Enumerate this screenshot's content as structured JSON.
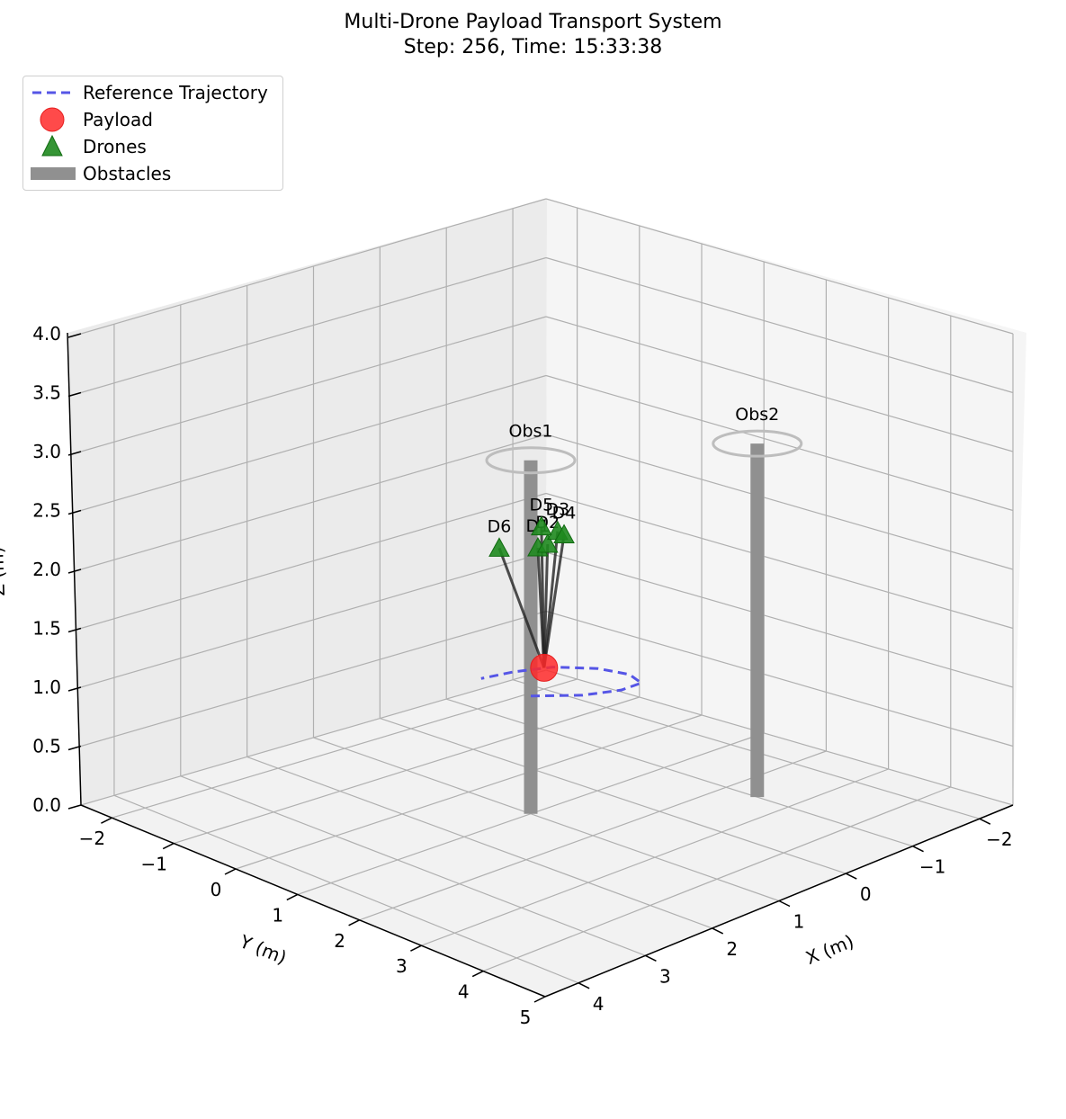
{
  "chart_data": {
    "type": "3d-scatter",
    "title_line1": "Multi-Drone Payload Transport System",
    "title_line2": "Step: 256, Time: 15:33:38",
    "xlabel": "X (m)",
    "ylabel": "Y (m)",
    "zlabel": "Z (m)",
    "xlim": [
      -2.5,
      4.5
    ],
    "ylim": [
      -2.5,
      5
    ],
    "zlim": [
      0,
      4
    ],
    "x_ticks": [
      "−2",
      "−1",
      "0",
      "1",
      "2",
      "3",
      "4"
    ],
    "y_ticks": [
      "−2",
      "−1",
      "0",
      "1",
      "2",
      "3",
      "4",
      "5"
    ],
    "z_ticks": [
      "0.0",
      "0.5",
      "1.0",
      "1.5",
      "2.0",
      "2.5",
      "3.0",
      "3.5",
      "4.0"
    ],
    "grid": true,
    "legend_position": "top-left",
    "legend": [
      "Reference Trajectory",
      "Payload",
      "Drones",
      "Obstacles"
    ],
    "colors": {
      "trajectory": "#5555e6",
      "payload": "#ff2a2a",
      "drones": "#1f8a1f",
      "obstacles": "#909090",
      "cables": "#222222"
    },
    "payload": {
      "x": 0.8,
      "y": 1.0,
      "z": 1.2
    },
    "drones": [
      {
        "name": "D1",
        "x": 0.8,
        "y": 0.9,
        "z": 2.2
      },
      {
        "name": "D2",
        "x": 0.7,
        "y": 0.95,
        "z": 2.22
      },
      {
        "name": "D3",
        "x": 0.55,
        "y": 0.95,
        "z": 2.3
      },
      {
        "name": "D4",
        "x": 0.5,
        "y": 1.0,
        "z": 2.27
      },
      {
        "name": "D5",
        "x": 0.7,
        "y": 0.85,
        "z": 2.35
      },
      {
        "name": "D6",
        "x": 1.1,
        "y": 0.6,
        "z": 2.2
      }
    ],
    "obstacles": [
      {
        "name": "Obs1",
        "x": 1.0,
        "y": 1.0,
        "height": 3.0
      },
      {
        "name": "Obs2",
        "x": -1.0,
        "y": 2.5,
        "height": 3.0
      }
    ],
    "reference_trajectory": {
      "x": [
        1.0,
        0.6,
        0.2,
        -0.1,
        -0.2,
        -0.1,
        0.2,
        0.6,
        1.0
      ],
      "y": [
        1.0,
        1.4,
        1.6,
        1.6,
        1.3,
        0.9,
        0.5,
        0.3,
        0.2
      ],
      "z": [
        1.0,
        1.0,
        1.0,
        1.0,
        1.0,
        1.0,
        1.0,
        1.0,
        1.0
      ]
    }
  }
}
